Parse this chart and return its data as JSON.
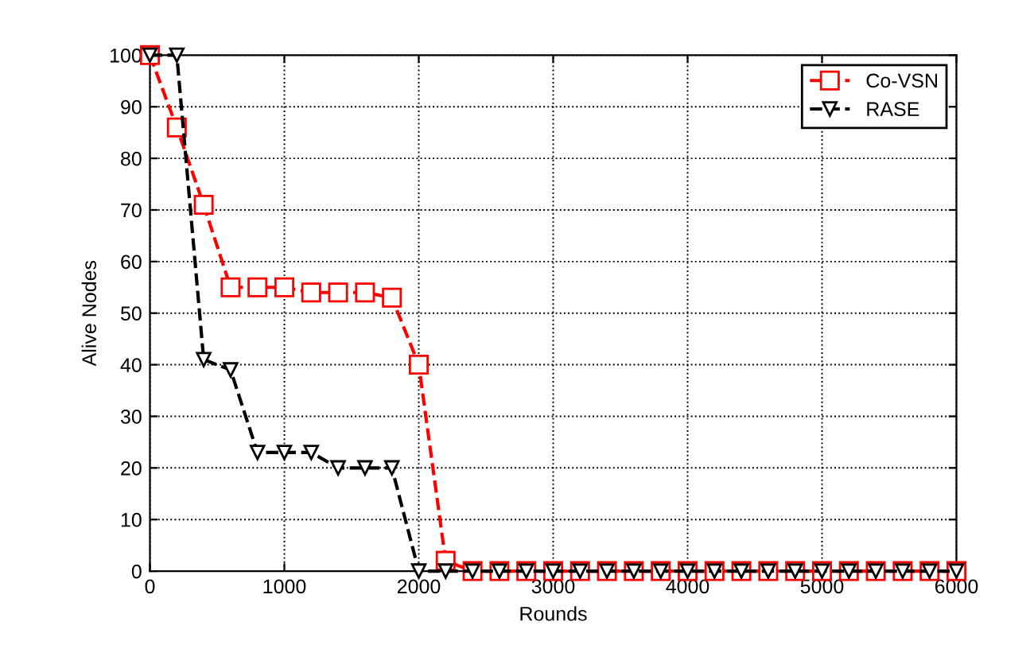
{
  "chart_data": {
    "type": "line",
    "xlabel": "Rounds",
    "ylabel": "Alive Nodes",
    "x": [
      0,
      200,
      400,
      600,
      800,
      1000,
      1200,
      1400,
      1600,
      1800,
      2000,
      2200,
      2400,
      2600,
      2800,
      3000,
      3200,
      3400,
      3600,
      3800,
      4000,
      4200,
      4400,
      4600,
      4800,
      5000,
      5200,
      5400,
      5600,
      5800,
      6000
    ],
    "series": [
      {
        "name": "Co-VSN",
        "color": "#ff0000",
        "marker": "square",
        "values": [
          100,
          86,
          71,
          55,
          55,
          55,
          54,
          54,
          54,
          53,
          40,
          2,
          0,
          0,
          0,
          0,
          0,
          0,
          0,
          0,
          0,
          0,
          0,
          0,
          0,
          0,
          0,
          0,
          0,
          0,
          0
        ]
      },
      {
        "name": "RASE",
        "color": "#000000",
        "marker": "triangle",
        "values": [
          100,
          100,
          41,
          39,
          23,
          23,
          23,
          20,
          20,
          20,
          0,
          0,
          0,
          0,
          0,
          0,
          0,
          0,
          0,
          0,
          0,
          0,
          0,
          0,
          0,
          0,
          0,
          0,
          0,
          0,
          0
        ]
      }
    ],
    "xlim": [
      0,
      6000
    ],
    "xticks": [
      0,
      1000,
      2000,
      3000,
      4000,
      5000,
      6000
    ],
    "ylim": [
      0,
      100
    ],
    "yticks": [
      0,
      10,
      20,
      30,
      40,
      50,
      60,
      70,
      80,
      90,
      100
    ],
    "grid": true,
    "legend": "top right",
    "line_style": "dashed"
  }
}
